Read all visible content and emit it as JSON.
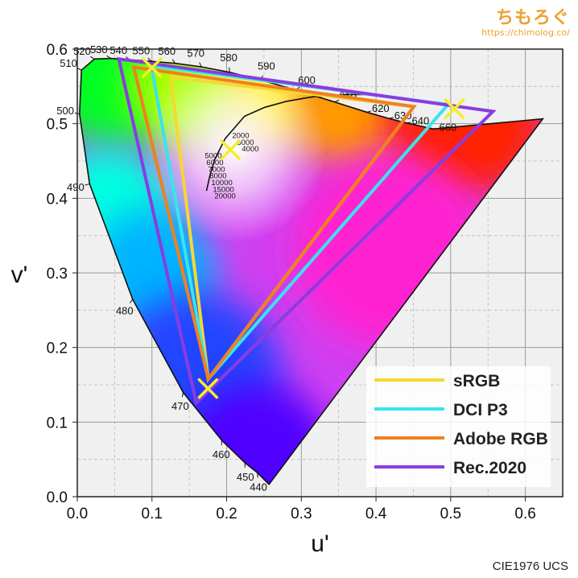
{
  "brand": {
    "logo": "ちもろぐ",
    "url": "https://chimolog.co/"
  },
  "footer": {
    "caption": "CIE1976 UCS"
  },
  "chart_data": {
    "type": "scatter",
    "title": "",
    "xlabel": "u'",
    "ylabel": "v'",
    "xlim": [
      0.0,
      0.65
    ],
    "ylim": [
      0.0,
      0.6
    ],
    "x_ticks": [
      "0.0",
      "0.1",
      "0.2",
      "0.3",
      "0.4",
      "0.5",
      "0.6"
    ],
    "y_ticks": [
      "0.0",
      "0.1",
      "0.2",
      "0.3",
      "0.4",
      "0.5",
      "0.6"
    ],
    "grid": true,
    "legend_position": "bottom-right",
    "spectral_locus": [
      {
        "nm": "380",
        "u": 0.2568,
        "v": 0.0165
      },
      {
        "nm": "440",
        "u": 0.2412,
        "v": 0.032
      },
      {
        "nm": "450",
        "u": 0.2244,
        "v": 0.0455
      },
      {
        "nm": "460",
        "u": 0.1935,
        "v": 0.0755
      },
      {
        "nm": "470",
        "u": 0.1418,
        "v": 0.1399
      },
      {
        "nm": "480",
        "u": 0.0741,
        "v": 0.2648
      },
      {
        "nm": "490",
        "u": 0.0165,
        "v": 0.4193
      },
      {
        "nm": "500",
        "u": 0.003,
        "v": 0.513
      },
      {
        "nm": "510",
        "u": 0.0056,
        "v": 0.5718
      },
      {
        "nm": "520",
        "u": 0.023,
        "v": 0.5867
      },
      {
        "nm": "530",
        "u": 0.0447,
        "v": 0.5875
      },
      {
        "nm": "540",
        "u": 0.0702,
        "v": 0.5856
      },
      {
        "nm": "550",
        "u": 0.0991,
        "v": 0.5836
      },
      {
        "nm": "560",
        "u": 0.1312,
        "v": 0.5809
      },
      {
        "nm": "570",
        "u": 0.1661,
        "v": 0.5761
      },
      {
        "nm": "580",
        "u": 0.2039,
        "v": 0.5689
      },
      {
        "nm": "590",
        "u": 0.2459,
        "v": 0.5586
      },
      {
        "nm": "600",
        "u": 0.2929,
        "v": 0.545
      },
      {
        "nm": "610",
        "u": 0.3445,
        "v": 0.5291
      },
      {
        "nm": "620",
        "u": 0.3874,
        "v": 0.5155
      },
      {
        "nm": "630",
        "u": 0.4171,
        "v": 0.5071
      },
      {
        "nm": "640",
        "u": 0.4404,
        "v": 0.501
      },
      {
        "nm": "660",
        "u": 0.4769,
        "v": 0.493
      },
      {
        "nm": "780",
        "u": 0.6234,
        "v": 0.5065
      }
    ],
    "wavelength_labels": [
      "440",
      "450",
      "460",
      "470",
      "480",
      "490",
      "500",
      "510",
      "520",
      "530",
      "540",
      "550",
      "560",
      "570",
      "580",
      "590",
      "600",
      "610",
      "620",
      "630",
      "640",
      "660"
    ],
    "planckian_locus": [
      {
        "u": 0.173,
        "v": 0.41
      },
      {
        "u": 0.1775,
        "v": 0.43
      },
      {
        "u": 0.184,
        "v": 0.452
      },
      {
        "u": 0.198,
        "v": 0.48
      },
      {
        "u": 0.224,
        "v": 0.51
      },
      {
        "u": 0.251,
        "v": 0.522
      },
      {
        "u": 0.28,
        "v": 0.53
      },
      {
        "u": 0.315,
        "v": 0.536
      },
      {
        "u": 0.36,
        "v": 0.539
      },
      {
        "u": 0.4,
        "v": 0.539
      }
    ],
    "cct_labels": [
      "2000",
      "3000",
      "4000",
      "5000",
      "6000",
      "7000",
      "8000",
      "10000",
      "15000",
      "20000"
    ],
    "series": [
      {
        "name": "sRGB",
        "color": "#f5d832",
        "points": [
          {
            "u": 0.4507,
            "v": 0.5229
          },
          {
            "u": 0.125,
            "v": 0.5625
          },
          {
            "u": 0.1754,
            "v": 0.1579
          }
        ]
      },
      {
        "name": "DCI P3",
        "color": "#38e4ee",
        "points": [
          {
            "u": 0.4964,
            "v": 0.5256
          },
          {
            "u": 0.099,
            "v": 0.5778
          },
          {
            "u": 0.1754,
            "v": 0.1579
          }
        ]
      },
      {
        "name": "Adobe RGB",
        "color": "#f08020",
        "points": [
          {
            "u": 0.4507,
            "v": 0.5229
          },
          {
            "u": 0.0757,
            "v": 0.5757
          },
          {
            "u": 0.1754,
            "v": 0.1579
          }
        ]
      },
      {
        "name": "Rec.2020",
        "color": "#8a3ce0",
        "points": [
          {
            "u": 0.5566,
            "v": 0.5165
          },
          {
            "u": 0.0556,
            "v": 0.5868
          },
          {
            "u": 0.1593,
            "v": 0.1258
          }
        ]
      }
    ],
    "measured_points": [
      {
        "u": 0.1,
        "v": 0.575
      },
      {
        "u": 0.505,
        "v": 0.52
      },
      {
        "u": 0.205,
        "v": 0.465
      },
      {
        "u": 0.175,
        "v": 0.145
      }
    ],
    "marker_color": "#f4ee2a"
  }
}
